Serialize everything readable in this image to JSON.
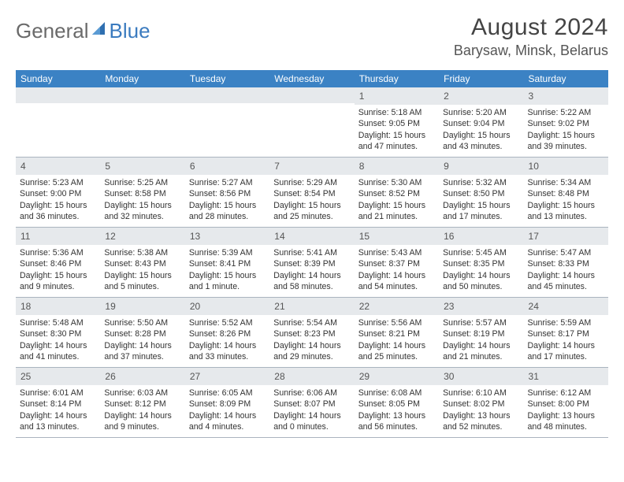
{
  "logo": {
    "general": "General",
    "blue": "Blue"
  },
  "title": "August 2024",
  "subtitle": "Barysaw, Minsk, Belarus",
  "colors": {
    "header_bg": "#3b82c4",
    "header_text": "#ffffff",
    "daynum_bg": "#e6e9ec",
    "daynum_text": "#555555",
    "body_text": "#333333",
    "rule": "#aab4bf",
    "title_text": "#444444",
    "logo_gray": "#6a6a6a",
    "logo_blue": "#3b7bbf"
  },
  "fonts": {
    "title_size_pt": 22,
    "subtitle_size_pt": 13,
    "weekday_size_pt": 9,
    "daynum_size_pt": 9,
    "body_size_pt": 8
  },
  "weekdays": [
    "Sunday",
    "Monday",
    "Tuesday",
    "Wednesday",
    "Thursday",
    "Friday",
    "Saturday"
  ],
  "weeks": [
    [
      {
        "num": "",
        "sunrise": "",
        "sunset": "",
        "daylight": ""
      },
      {
        "num": "",
        "sunrise": "",
        "sunset": "",
        "daylight": ""
      },
      {
        "num": "",
        "sunrise": "",
        "sunset": "",
        "daylight": ""
      },
      {
        "num": "",
        "sunrise": "",
        "sunset": "",
        "daylight": ""
      },
      {
        "num": "1",
        "sunrise": "Sunrise: 5:18 AM",
        "sunset": "Sunset: 9:05 PM",
        "daylight": "Daylight: 15 hours and 47 minutes."
      },
      {
        "num": "2",
        "sunrise": "Sunrise: 5:20 AM",
        "sunset": "Sunset: 9:04 PM",
        "daylight": "Daylight: 15 hours and 43 minutes."
      },
      {
        "num": "3",
        "sunrise": "Sunrise: 5:22 AM",
        "sunset": "Sunset: 9:02 PM",
        "daylight": "Daylight: 15 hours and 39 minutes."
      }
    ],
    [
      {
        "num": "4",
        "sunrise": "Sunrise: 5:23 AM",
        "sunset": "Sunset: 9:00 PM",
        "daylight": "Daylight: 15 hours and 36 minutes."
      },
      {
        "num": "5",
        "sunrise": "Sunrise: 5:25 AM",
        "sunset": "Sunset: 8:58 PM",
        "daylight": "Daylight: 15 hours and 32 minutes."
      },
      {
        "num": "6",
        "sunrise": "Sunrise: 5:27 AM",
        "sunset": "Sunset: 8:56 PM",
        "daylight": "Daylight: 15 hours and 28 minutes."
      },
      {
        "num": "7",
        "sunrise": "Sunrise: 5:29 AM",
        "sunset": "Sunset: 8:54 PM",
        "daylight": "Daylight: 15 hours and 25 minutes."
      },
      {
        "num": "8",
        "sunrise": "Sunrise: 5:30 AM",
        "sunset": "Sunset: 8:52 PM",
        "daylight": "Daylight: 15 hours and 21 minutes."
      },
      {
        "num": "9",
        "sunrise": "Sunrise: 5:32 AM",
        "sunset": "Sunset: 8:50 PM",
        "daylight": "Daylight: 15 hours and 17 minutes."
      },
      {
        "num": "10",
        "sunrise": "Sunrise: 5:34 AM",
        "sunset": "Sunset: 8:48 PM",
        "daylight": "Daylight: 15 hours and 13 minutes."
      }
    ],
    [
      {
        "num": "11",
        "sunrise": "Sunrise: 5:36 AM",
        "sunset": "Sunset: 8:46 PM",
        "daylight": "Daylight: 15 hours and 9 minutes."
      },
      {
        "num": "12",
        "sunrise": "Sunrise: 5:38 AM",
        "sunset": "Sunset: 8:43 PM",
        "daylight": "Daylight: 15 hours and 5 minutes."
      },
      {
        "num": "13",
        "sunrise": "Sunrise: 5:39 AM",
        "sunset": "Sunset: 8:41 PM",
        "daylight": "Daylight: 15 hours and 1 minute."
      },
      {
        "num": "14",
        "sunrise": "Sunrise: 5:41 AM",
        "sunset": "Sunset: 8:39 PM",
        "daylight": "Daylight: 14 hours and 58 minutes."
      },
      {
        "num": "15",
        "sunrise": "Sunrise: 5:43 AM",
        "sunset": "Sunset: 8:37 PM",
        "daylight": "Daylight: 14 hours and 54 minutes."
      },
      {
        "num": "16",
        "sunrise": "Sunrise: 5:45 AM",
        "sunset": "Sunset: 8:35 PM",
        "daylight": "Daylight: 14 hours and 50 minutes."
      },
      {
        "num": "17",
        "sunrise": "Sunrise: 5:47 AM",
        "sunset": "Sunset: 8:33 PM",
        "daylight": "Daylight: 14 hours and 45 minutes."
      }
    ],
    [
      {
        "num": "18",
        "sunrise": "Sunrise: 5:48 AM",
        "sunset": "Sunset: 8:30 PM",
        "daylight": "Daylight: 14 hours and 41 minutes."
      },
      {
        "num": "19",
        "sunrise": "Sunrise: 5:50 AM",
        "sunset": "Sunset: 8:28 PM",
        "daylight": "Daylight: 14 hours and 37 minutes."
      },
      {
        "num": "20",
        "sunrise": "Sunrise: 5:52 AM",
        "sunset": "Sunset: 8:26 PM",
        "daylight": "Daylight: 14 hours and 33 minutes."
      },
      {
        "num": "21",
        "sunrise": "Sunrise: 5:54 AM",
        "sunset": "Sunset: 8:23 PM",
        "daylight": "Daylight: 14 hours and 29 minutes."
      },
      {
        "num": "22",
        "sunrise": "Sunrise: 5:56 AM",
        "sunset": "Sunset: 8:21 PM",
        "daylight": "Daylight: 14 hours and 25 minutes."
      },
      {
        "num": "23",
        "sunrise": "Sunrise: 5:57 AM",
        "sunset": "Sunset: 8:19 PM",
        "daylight": "Daylight: 14 hours and 21 minutes."
      },
      {
        "num": "24",
        "sunrise": "Sunrise: 5:59 AM",
        "sunset": "Sunset: 8:17 PM",
        "daylight": "Daylight: 14 hours and 17 minutes."
      }
    ],
    [
      {
        "num": "25",
        "sunrise": "Sunrise: 6:01 AM",
        "sunset": "Sunset: 8:14 PM",
        "daylight": "Daylight: 14 hours and 13 minutes."
      },
      {
        "num": "26",
        "sunrise": "Sunrise: 6:03 AM",
        "sunset": "Sunset: 8:12 PM",
        "daylight": "Daylight: 14 hours and 9 minutes."
      },
      {
        "num": "27",
        "sunrise": "Sunrise: 6:05 AM",
        "sunset": "Sunset: 8:09 PM",
        "daylight": "Daylight: 14 hours and 4 minutes."
      },
      {
        "num": "28",
        "sunrise": "Sunrise: 6:06 AM",
        "sunset": "Sunset: 8:07 PM",
        "daylight": "Daylight: 14 hours and 0 minutes."
      },
      {
        "num": "29",
        "sunrise": "Sunrise: 6:08 AM",
        "sunset": "Sunset: 8:05 PM",
        "daylight": "Daylight: 13 hours and 56 minutes."
      },
      {
        "num": "30",
        "sunrise": "Sunrise: 6:10 AM",
        "sunset": "Sunset: 8:02 PM",
        "daylight": "Daylight: 13 hours and 52 minutes."
      },
      {
        "num": "31",
        "sunrise": "Sunrise: 6:12 AM",
        "sunset": "Sunset: 8:00 PM",
        "daylight": "Daylight: 13 hours and 48 minutes."
      }
    ]
  ]
}
